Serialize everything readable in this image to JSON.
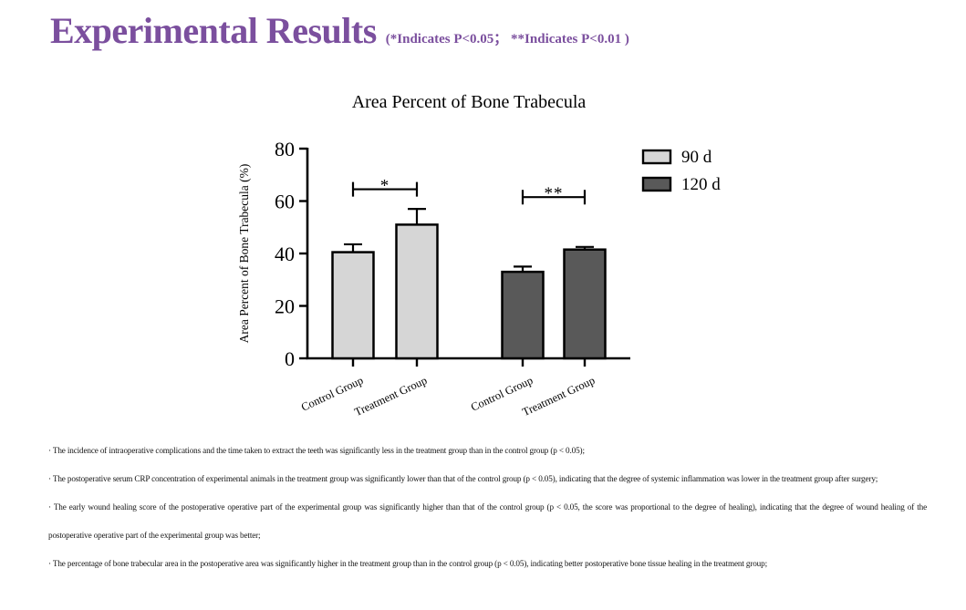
{
  "header": {
    "title": "Experimental Results",
    "note": "(*Indicates P<0.05； **Indicates P<0.01 )",
    "accent_color": "#7b4f9e"
  },
  "chart_data": {
    "type": "bar",
    "title": "Area Percent of Bone Trabecula",
    "ylabel": "Area Percent of Bone Trabecula (%)",
    "ylim": [
      0,
      80
    ],
    "yticks": [
      0,
      20,
      40,
      60,
      80
    ],
    "grid": false,
    "legend_position": "right",
    "series": [
      {
        "name": "90 d",
        "color": "#d6d6d6"
      },
      {
        "name": "120 d",
        "color": "#595959"
      }
    ],
    "bars": [
      {
        "category": "Control Group",
        "series": 0,
        "value": 40.5,
        "error": 3
      },
      {
        "category": "Treatment Group",
        "series": 0,
        "value": 51,
        "error": 6
      },
      {
        "category": "Control Group",
        "series": 1,
        "value": 33,
        "error": 2
      },
      {
        "category": "Treatment Group",
        "series": 1,
        "value": 41.5,
        "error": 1
      }
    ],
    "significance": [
      {
        "between": [
          0,
          1
        ],
        "label": "*",
        "height": 64.5
      },
      {
        "between": [
          2,
          3
        ],
        "label": "**",
        "height": 61.5
      }
    ],
    "legend": [
      {
        "label": "90 d",
        "color": "#d6d6d6"
      },
      {
        "label": "120 d",
        "color": "#595959"
      }
    ]
  },
  "notes": {
    "items": [
      "· The incidence of intraoperative complications and the time taken to extract the teeth was significantly less in the treatment group than in the control group (p < 0.05);",
      "· The postoperative serum CRP concentration of experimental animals in the treatment group was significantly lower than that of the control group (p < 0.05), indicating that the degree of systemic inflammation was lower in the treatment group after surgery;",
      "· The early wound healing score of the postoperative operative part of the experimental group was significantly higher than that of the control group (p < 0.05, the score was proportional to the degree of healing), indicating that the degree of wound healing of the postoperative operative part of the experimental group was better;",
      "· The percentage of bone trabecular area in the postoperative area was significantly higher in the treatment group than in the control group (p < 0.05), indicating better postoperative bone tissue healing in the treatment group;"
    ]
  }
}
